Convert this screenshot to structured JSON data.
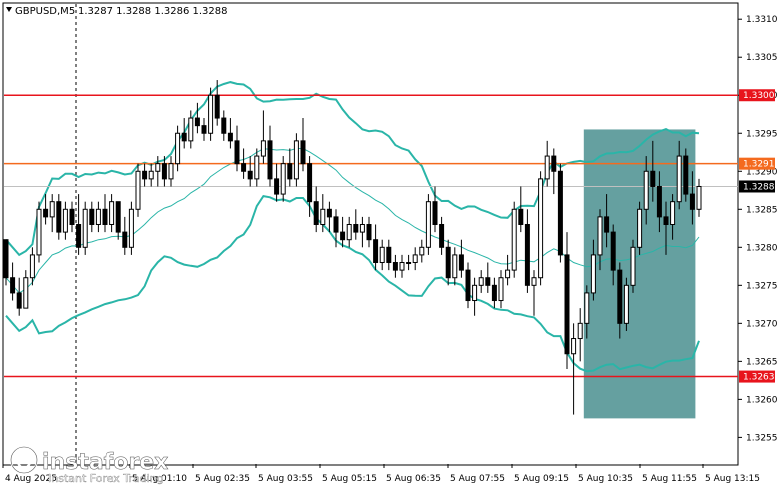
{
  "header": {
    "symbol": "GBPUSD,M5",
    "ohlc": "1.3287 1.3288 1.3286 1.3288"
  },
  "logo": {
    "name": "instaforex",
    "tagline": "Instant Forex Trading"
  },
  "chart_data": {
    "type": "candlestick",
    "symbol": "GBPUSD",
    "timeframe": "M5",
    "ylim": [
      1.32515,
      1.3312
    ],
    "y_ticks": [
      "1.3310",
      "1.3305",
      "1.3300",
      "1.3295",
      "1.3290",
      "1.3285",
      "1.3280",
      "1.3275",
      "1.3270",
      "1.3265",
      "1.3260",
      "1.3255"
    ],
    "x_ticks": [
      "4 Aug 2025",
      "5 Aug 01:10",
      "5 Aug 02:35",
      "5 Aug 03:55",
      "5 Aug 05:15",
      "5 Aug 06:35",
      "5 Aug 07:55",
      "5 Aug 09:15",
      "5 Aug 10:35",
      "5 Aug 11:55",
      "5 Aug 13:15"
    ],
    "levels": [
      {
        "value": 1.33,
        "label": "1.3300",
        "color": "#e8141c"
      },
      {
        "value": 1.3291,
        "label": "1.3291",
        "color": "#f46a1e"
      },
      {
        "value": 1.3263,
        "label": "1.3263",
        "color": "#e8141c"
      }
    ],
    "current_price": {
      "value": 1.3288,
      "label": "1.3288"
    },
    "highlight_zone": {
      "x_start_candle": 88,
      "x_end_candle": 104,
      "y_low": 1.32575,
      "y_high": 1.32955,
      "color": "#4a8f8f"
    },
    "colors": {
      "band": "#2ab5a8",
      "ma": "#2ab5a8",
      "candle": "#000000",
      "background": "#ffffff"
    },
    "candles": [
      [
        1.3281,
        1.3281,
        1.3275,
        1.3276
      ],
      [
        1.3276,
        1.3278,
        1.3273,
        1.3274
      ],
      [
        1.3274,
        1.3276,
        1.3271,
        1.3272
      ],
      [
        1.3272,
        1.3277,
        1.3272,
        1.3276
      ],
      [
        1.3276,
        1.328,
        1.3275,
        1.3279
      ],
      [
        1.3279,
        1.3286,
        1.3278,
        1.3285
      ],
      [
        1.3285,
        1.3287,
        1.3283,
        1.3284
      ],
      [
        1.3284,
        1.3287,
        1.3282,
        1.3286
      ],
      [
        1.3286,
        1.3287,
        1.3281,
        1.3282
      ],
      [
        1.3282,
        1.3286,
        1.3281,
        1.3285
      ],
      [
        1.3285,
        1.3286,
        1.3282,
        1.3283
      ],
      [
        1.3283,
        1.3287,
        1.3279,
        1.328
      ],
      [
        1.328,
        1.3286,
        1.3279,
        1.3285
      ],
      [
        1.3285,
        1.3286,
        1.3282,
        1.3283
      ],
      [
        1.3283,
        1.3286,
        1.3282,
        1.3285
      ],
      [
        1.3285,
        1.3287,
        1.3282,
        1.3283
      ],
      [
        1.3283,
        1.3287,
        1.3282,
        1.3286
      ],
      [
        1.3286,
        1.3286,
        1.3281,
        1.3282
      ],
      [
        1.3282,
        1.3284,
        1.3279,
        1.328
      ],
      [
        1.328,
        1.3286,
        1.3279,
        1.3285
      ],
      [
        1.3285,
        1.3291,
        1.3284,
        1.329
      ],
      [
        1.329,
        1.3291,
        1.3288,
        1.3289
      ],
      [
        1.3289,
        1.3291,
        1.3288,
        1.329
      ],
      [
        1.329,
        1.3292,
        1.3288,
        1.3291
      ],
      [
        1.3291,
        1.3292,
        1.3288,
        1.3289
      ],
      [
        1.3289,
        1.3292,
        1.3288,
        1.3291
      ],
      [
        1.3291,
        1.3296,
        1.329,
        1.3295
      ],
      [
        1.3295,
        1.3297,
        1.3293,
        1.3294
      ],
      [
        1.3294,
        1.3298,
        1.3293,
        1.3297
      ],
      [
        1.3297,
        1.3299,
        1.3295,
        1.3296
      ],
      [
        1.3296,
        1.3297,
        1.3294,
        1.3295
      ],
      [
        1.3295,
        1.3301,
        1.3294,
        1.33
      ],
      [
        1.33,
        1.3302,
        1.3296,
        1.3297
      ],
      [
        1.3297,
        1.3298,
        1.3294,
        1.3295
      ],
      [
        1.3295,
        1.3297,
        1.3293,
        1.3294
      ],
      [
        1.3294,
        1.3296,
        1.329,
        1.3291
      ],
      [
        1.3291,
        1.3293,
        1.3289,
        1.329
      ],
      [
        1.329,
        1.3292,
        1.3288,
        1.3289
      ],
      [
        1.3289,
        1.3293,
        1.3288,
        1.3292
      ],
      [
        1.3292,
        1.3298,
        1.3291,
        1.3294
      ],
      [
        1.3294,
        1.3296,
        1.3288,
        1.3289
      ],
      [
        1.3289,
        1.3291,
        1.3286,
        1.3287
      ],
      [
        1.3287,
        1.3292,
        1.3286,
        1.3291
      ],
      [
        1.3291,
        1.3293,
        1.3288,
        1.3289
      ],
      [
        1.3289,
        1.3295,
        1.3288,
        1.3294
      ],
      [
        1.3294,
        1.3297,
        1.329,
        1.3291
      ],
      [
        1.3291,
        1.3292,
        1.3284,
        1.3286
      ],
      [
        1.3286,
        1.3288,
        1.3282,
        1.3283
      ],
      [
        1.3283,
        1.3287,
        1.3282,
        1.3285
      ],
      [
        1.3285,
        1.3286,
        1.3282,
        1.3284
      ],
      [
        1.3284,
        1.3285,
        1.328,
        1.3282
      ],
      [
        1.3282,
        1.3284,
        1.328,
        1.3281
      ],
      [
        1.3281,
        1.3284,
        1.328,
        1.3283
      ],
      [
        1.3283,
        1.3285,
        1.3281,
        1.3282
      ],
      [
        1.3282,
        1.3284,
        1.328,
        1.3283
      ],
      [
        1.3283,
        1.3284,
        1.328,
        1.3281
      ],
      [
        1.3281,
        1.3283,
        1.3277,
        1.3278
      ],
      [
        1.3278,
        1.3281,
        1.3277,
        1.328
      ],
      [
        1.328,
        1.3281,
        1.3277,
        1.3278
      ],
      [
        1.3278,
        1.3279,
        1.3276,
        1.3277
      ],
      [
        1.3277,
        1.3279,
        1.3276,
        1.3278
      ],
      [
        1.3278,
        1.3279,
        1.3277,
        1.3278
      ],
      [
        1.3278,
        1.328,
        1.3277,
        1.3279
      ],
      [
        1.3279,
        1.3281,
        1.3278,
        1.328
      ],
      [
        1.328,
        1.3287,
        1.3279,
        1.3286
      ],
      [
        1.3286,
        1.3288,
        1.3282,
        1.3283
      ],
      [
        1.3283,
        1.3284,
        1.3279,
        1.328
      ],
      [
        1.328,
        1.3281,
        1.3275,
        1.3276
      ],
      [
        1.3276,
        1.328,
        1.3275,
        1.3279
      ],
      [
        1.3279,
        1.3281,
        1.3276,
        1.3277
      ],
      [
        1.3277,
        1.3278,
        1.3272,
        1.3273
      ],
      [
        1.3273,
        1.3276,
        1.3271,
        1.3275
      ],
      [
        1.3275,
        1.3277,
        1.3274,
        1.3276
      ],
      [
        1.3276,
        1.3278,
        1.3274,
        1.3275
      ],
      [
        1.3275,
        1.3276,
        1.3272,
        1.3273
      ],
      [
        1.3273,
        1.3277,
        1.3272,
        1.3276
      ],
      [
        1.3276,
        1.3279,
        1.3275,
        1.3277
      ],
      [
        1.3277,
        1.3286,
        1.3276,
        1.3285
      ],
      [
        1.3285,
        1.3288,
        1.3282,
        1.3283
      ],
      [
        1.3283,
        1.3285,
        1.3274,
        1.3275
      ],
      [
        1.3275,
        1.3277,
        1.3271,
        1.3276
      ],
      [
        1.3276,
        1.329,
        1.3275,
        1.3289
      ],
      [
        1.3289,
        1.3294,
        1.3288,
        1.3292
      ],
      [
        1.3292,
        1.3293,
        1.3287,
        1.329
      ],
      [
        1.329,
        1.3291,
        1.3278,
        1.3279
      ],
      [
        1.3279,
        1.3282,
        1.3264,
        1.3266
      ],
      [
        1.3266,
        1.327,
        1.3258,
        1.3268
      ],
      [
        1.3268,
        1.3272,
        1.3265,
        1.327
      ],
      [
        1.327,
        1.3275,
        1.3268,
        1.3274
      ],
      [
        1.3274,
        1.3281,
        1.3273,
        1.3279
      ],
      [
        1.3279,
        1.3285,
        1.3277,
        1.3284
      ],
      [
        1.3284,
        1.3287,
        1.328,
        1.3282
      ],
      [
        1.3282,
        1.3283,
        1.3275,
        1.3277
      ],
      [
        1.3277,
        1.3278,
        1.3268,
        1.327
      ],
      [
        1.327,
        1.3276,
        1.3269,
        1.3275
      ],
      [
        1.3275,
        1.3281,
        1.3274,
        1.328
      ],
      [
        1.328,
        1.3286,
        1.3279,
        1.3285
      ],
      [
        1.3285,
        1.3292,
        1.3283,
        1.329
      ],
      [
        1.329,
        1.3294,
        1.3286,
        1.3288
      ],
      [
        1.3288,
        1.329,
        1.3282,
        1.3284
      ],
      [
        1.3284,
        1.3286,
        1.3279,
        1.3283
      ],
      [
        1.3283,
        1.3287,
        1.3281,
        1.3286
      ],
      [
        1.3286,
        1.3294,
        1.3285,
        1.3292
      ],
      [
        1.3292,
        1.3293,
        1.3286,
        1.3287
      ],
      [
        1.3287,
        1.329,
        1.3283,
        1.3285
      ],
      [
        1.3285,
        1.3289,
        1.3284,
        1.3288
      ]
    ]
  }
}
